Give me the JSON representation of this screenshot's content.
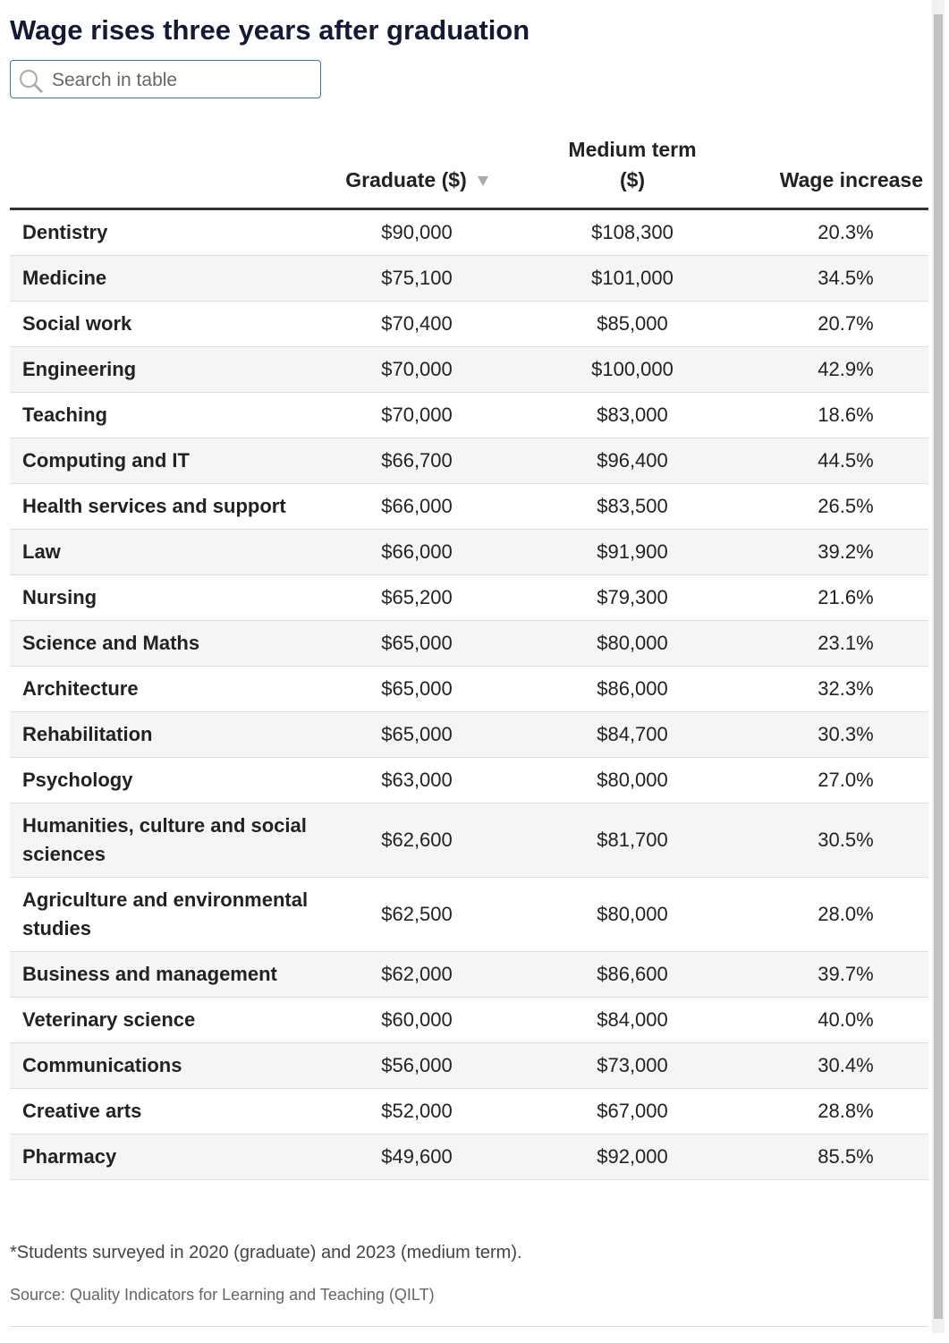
{
  "header": {
    "title": "Wage rises three years after graduation",
    "search_placeholder": "Search in table"
  },
  "table": {
    "columns": [
      "",
      "Graduate ($)",
      "Medium term ($)",
      "Wage increase"
    ],
    "rows": [
      [
        "Dentistry",
        "$90,000",
        "$108,300",
        "20.3%"
      ],
      [
        "Medicine",
        "$75,100",
        "$101,000",
        "34.5%"
      ],
      [
        "Social work",
        "$70,400",
        "$85,000",
        "20.7%"
      ],
      [
        "Engineering",
        "$70,000",
        "$100,000",
        "42.9%"
      ],
      [
        "Teaching",
        "$70,000",
        "$83,000",
        "18.6%"
      ],
      [
        "Computing and IT",
        "$66,700",
        "$96,400",
        "44.5%"
      ],
      [
        "Health services and support",
        "$66,000",
        "$83,500",
        "26.5%"
      ],
      [
        "Law",
        "$66,000",
        "$91,900",
        "39.2%"
      ],
      [
        "Nursing",
        "$65,200",
        "$79,300",
        "21.6%"
      ],
      [
        "Science and Maths",
        "$65,000",
        "$80,000",
        "23.1%"
      ],
      [
        "Architecture",
        "$65,000",
        "$86,000",
        "32.3%"
      ],
      [
        "Rehabilitation",
        "$65,000",
        "$84,700",
        "30.3%"
      ],
      [
        "Psychology",
        "$63,000",
        "$80,000",
        "27.0%"
      ],
      [
        "Humanities, culture and social sciences",
        "$62,600",
        "$81,700",
        "30.5%"
      ],
      [
        "Agriculture and environmental studies",
        "$62,500",
        "$80,000",
        "28.0%"
      ],
      [
        "Business and management",
        "$62,000",
        "$86,600",
        "39.7%"
      ],
      [
        "Veterinary science",
        "$60,000",
        "$84,000",
        "40.0%"
      ],
      [
        "Communications",
        "$56,000",
        "$73,000",
        "30.4%"
      ],
      [
        "Creative arts",
        "$52,000",
        "$67,000",
        "28.8%"
      ],
      [
        "Pharmacy",
        "$49,600",
        "$92,000",
        "85.5%"
      ]
    ]
  },
  "footer": {
    "note": "*Students surveyed in 2020 (graduate) and 2023 (medium term).",
    "source": "Source: Quality Indicators for Learning and Teaching (QILT)"
  }
}
